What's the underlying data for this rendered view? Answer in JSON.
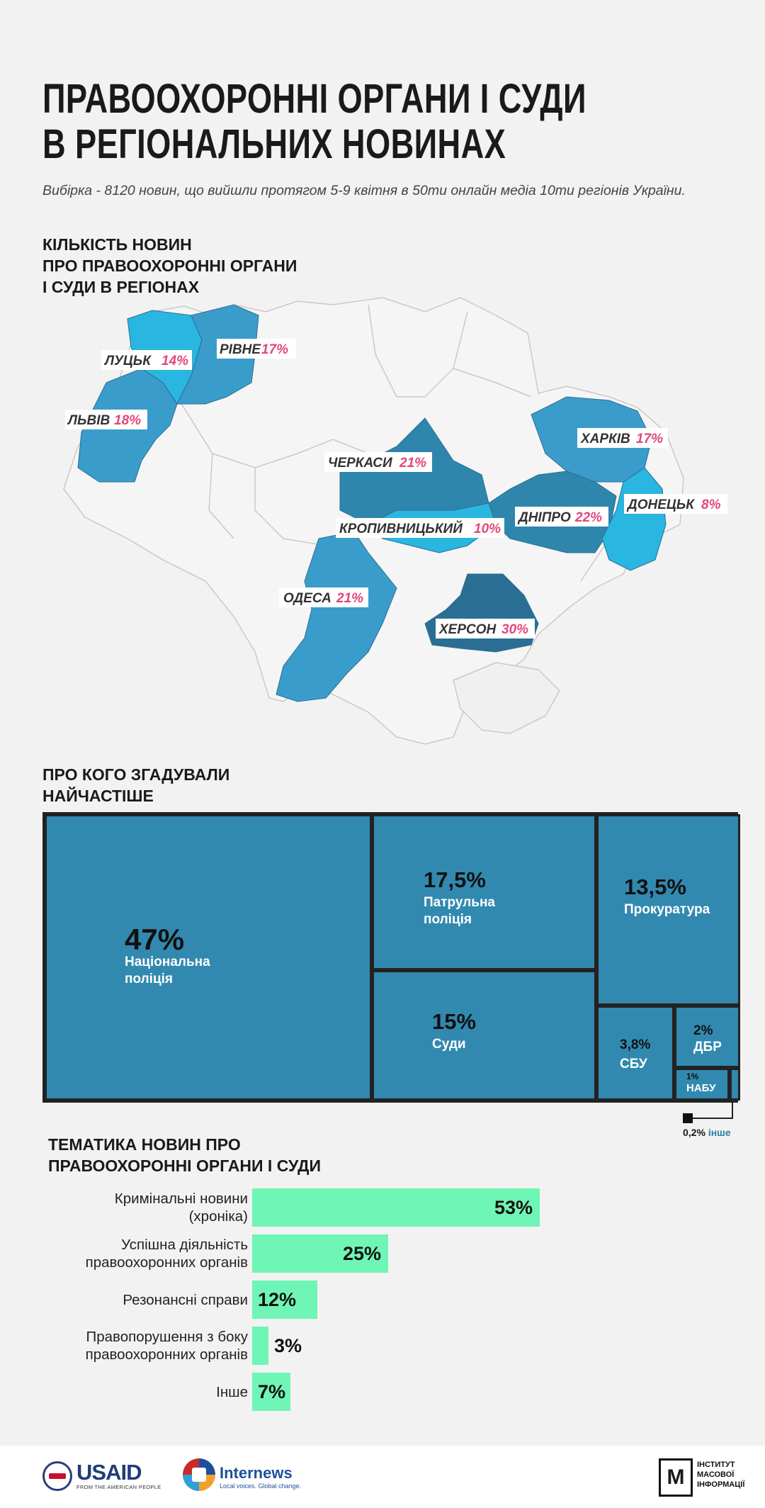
{
  "header": {
    "title_line1": "ПРАВООХОРОННІ ОРГАНИ І СУДИ",
    "title_line2": "В РЕГІОНАЛЬНИХ НОВИНАХ",
    "subtitle": "Вибірка - 8120 новин, що вийшли протягом 5-9 квітня в 50ти онлайн медіа 10ти регіонів України."
  },
  "map_section": {
    "heading": "КІЛЬКІСТЬ НОВИН\nПРО ПРАВООХОРОННІ ОРГАНИ\nІ СУДИ В РЕГІОНАХ",
    "regions": [
      {
        "name": "ЛУЦЬК",
        "value": "14%"
      },
      {
        "name": "РІВНЕ",
        "value": "17%"
      },
      {
        "name": "ЛЬВІВ",
        "value": "18%"
      },
      {
        "name": "ЧЕРКАСИ",
        "value": "21%"
      },
      {
        "name": "ХАРКІВ",
        "value": "17%"
      },
      {
        "name": "ДОНЕЦЬК",
        "value": "8%"
      },
      {
        "name": "ДНІПРО",
        "value": "22%"
      },
      {
        "name": "КРОПИВНИЦЬКИЙ",
        "value": "10%"
      },
      {
        "name": "ОДЕСА",
        "value": "21%"
      },
      {
        "name": "ХЕРСОН",
        "value": "30%"
      }
    ],
    "colors": {
      "light": "#29b6e0",
      "mid": "#3a9ccb",
      "dark": "#2f86ad",
      "darkest": "#2a6f93",
      "pct": "#e2477a",
      "base": "#f5f5f5",
      "border": "#c9c9c9"
    }
  },
  "treemap_section": {
    "heading": "ПРО КОГО ЗГАДУВАЛИ\nНАЙЧАСТІШЕ",
    "other_value": "0,2%",
    "other_label": "інше"
  },
  "topics_section": {
    "heading": "ТЕМАТИКА НОВИН ПРО\nПРАВООХОРОННІ ОРГАНИ І СУДИ"
  },
  "chart_data": [
    {
      "type": "treemap",
      "title": "ПРО КОГО ЗГАДУВАЛИ НАЙЧАСТІШЕ",
      "items": [
        {
          "label": "Національна поліція",
          "value": 47,
          "display": "47%"
        },
        {
          "label": "Патрульна поліція",
          "value": 17.5,
          "display": "17,5%"
        },
        {
          "label": "Прокуратура",
          "value": 13.5,
          "display": "13,5%"
        },
        {
          "label": "Суди",
          "value": 15,
          "display": "15%"
        },
        {
          "label": "СБУ",
          "value": 3.8,
          "display": "3,8%"
        },
        {
          "label": "ДБР",
          "value": 2,
          "display": "2%"
        },
        {
          "label": "НАБУ",
          "value": 1,
          "display": "1%"
        },
        {
          "label": "інше",
          "value": 0.2,
          "display": "0,2%"
        }
      ],
      "color": "#3289b0"
    },
    {
      "type": "bar",
      "title": "ТЕМАТИКА НОВИН ПРО ПРАВООХОРОННІ ОРГАНИ І СУДИ",
      "categories": [
        "Кримінальні новини\n(хроніка)",
        "Успішна діяльність\nправоохоронних органів",
        "Резонансні справи",
        "Правопорушення з боку\nправоохоронних органів",
        "Інше"
      ],
      "values": [
        53,
        25,
        12,
        3,
        7
      ],
      "labels": [
        "53%",
        "25%",
        "12%",
        "3%",
        "7%"
      ],
      "xlim": [
        0,
        53
      ],
      "color": "#6ff5b5"
    }
  ],
  "footer": {
    "usaid_word": "USAID",
    "usaid_sub": "FROM THE AMERICAN PEOPLE",
    "internews_word": "Internews",
    "internews_sub": "Local voices. Global change.",
    "imi_mark": "М",
    "imi_text": "ІНСТИТУТ\nМАСОВОЇ\nІНФОРМАЦІЇ"
  }
}
